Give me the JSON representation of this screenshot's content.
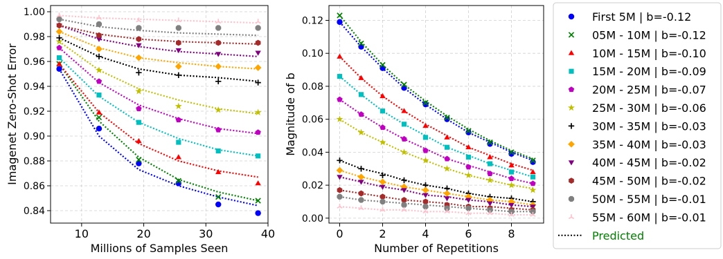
{
  "series_styles": [
    {
      "color": "#0000ff",
      "marker": "circle"
    },
    {
      "color": "#008000",
      "marker": "x"
    },
    {
      "color": "#ff0000",
      "marker": "triangle-up"
    },
    {
      "color": "#00bfbf",
      "marker": "square"
    },
    {
      "color": "#c000c0",
      "marker": "pentagon"
    },
    {
      "color": "#bfbf00",
      "marker": "star"
    },
    {
      "color": "#000000",
      "marker": "plus"
    },
    {
      "color": "#ffa500",
      "marker": "diamond"
    },
    {
      "color": "#800080",
      "marker": "triangle-down"
    },
    {
      "color": "#a52a2a",
      "marker": "hexagon"
    },
    {
      "color": "#808080",
      "marker": "octagon"
    },
    {
      "color": "#ffc0cb",
      "marker": "tri-down"
    }
  ],
  "legend": {
    "entries": [
      "First 5M      | b=-0.12",
      "05M - 10M | b=-0.12",
      "10M - 15M | b=-0.10",
      "15M - 20M | b=-0.09",
      "20M - 25M | b=-0.07",
      "25M - 30M | b=-0.06",
      "30M - 35M | b=-0.03",
      "35M - 40M | b=-0.03",
      "40M - 45M | b=-0.02",
      "45M - 50M | b=-0.02",
      "50M - 55M | b=-0.01",
      "55M - 60M | b=-0.01"
    ],
    "predicted_label": "Predicted",
    "predicted_color": "#008000",
    "placement": "right, outside plots"
  },
  "chart_data": [
    {
      "type": "scatter",
      "xlabel": "Millions of Samples Seen",
      "ylabel": "Imagenet Zero-Shot Error",
      "xlim": [
        5,
        40
      ],
      "ylim": [
        0.83,
        1.005
      ],
      "xticks": [
        10,
        20,
        30,
        40
      ],
      "xtick_labels": [
        "10",
        "20",
        "30",
        "40"
      ],
      "yticks": [
        0.84,
        0.86,
        0.88,
        0.9,
        0.92,
        0.94,
        0.96,
        0.98,
        1.0
      ],
      "ytick_labels": [
        "0.84",
        "0.86",
        "0.88",
        "0.90",
        "0.92",
        "0.94",
        "0.96",
        "0.98",
        "1.00"
      ],
      "grid": true,
      "x": [
        6.4,
        12.8,
        19.2,
        25.6,
        32.0,
        38.4
      ],
      "series": [
        {
          "values": [
            0.954,
            0.906,
            0.878,
            0.862,
            0.845,
            0.838
          ],
          "predicted": [
            0.954,
            0.9,
            0.873,
            0.86,
            0.851,
            0.844
          ]
        },
        {
          "values": [
            0.958,
            0.915,
            0.881,
            0.864,
            0.851,
            0.848
          ],
          "predicted": [
            0.958,
            0.912,
            0.883,
            0.865,
            0.855,
            0.848
          ]
        },
        {
          "values": [
            0.958,
            0.919,
            0.896,
            0.883,
            0.871,
            0.862
          ],
          "predicted": [
            0.958,
            0.919,
            0.894,
            0.88,
            0.872,
            0.867
          ]
        },
        {
          "values": [
            0.963,
            0.933,
            0.911,
            0.895,
            0.888,
            0.884
          ],
          "predicted": [
            0.963,
            0.932,
            0.911,
            0.898,
            0.889,
            0.884
          ]
        },
        {
          "values": [
            0.971,
            0.944,
            0.922,
            0.913,
            0.905,
            0.903
          ],
          "predicted": [
            0.971,
            0.943,
            0.925,
            0.914,
            0.906,
            0.902
          ]
        },
        {
          "values": [
            0.976,
            0.953,
            0.936,
            0.924,
            0.921,
            0.919
          ],
          "predicted": [
            0.976,
            0.953,
            0.938,
            0.929,
            0.922,
            0.918
          ]
        },
        {
          "values": [
            0.979,
            0.964,
            0.951,
            0.949,
            0.944,
            0.943
          ],
          "predicted": [
            0.979,
            0.964,
            0.954,
            0.949,
            0.947,
            0.944
          ]
        },
        {
          "values": [
            0.984,
            0.97,
            0.963,
            0.956,
            0.956,
            0.955
          ],
          "predicted": [
            0.984,
            0.971,
            0.963,
            0.959,
            0.956,
            0.954
          ]
        },
        {
          "values": [
            0.989,
            0.978,
            0.973,
            0.969,
            0.966,
            0.967
          ],
          "predicted": [
            0.989,
            0.978,
            0.972,
            0.968,
            0.966,
            0.964
          ]
        },
        {
          "values": [
            0.989,
            0.981,
            0.978,
            0.975,
            0.975,
            0.975
          ],
          "predicted": [
            0.989,
            0.982,
            0.978,
            0.976,
            0.975,
            0.974
          ]
        },
        {
          "values": [
            0.994,
            0.99,
            0.987,
            0.987,
            0.987,
            0.987
          ],
          "predicted": [
            0.994,
            0.988,
            0.985,
            0.983,
            0.982,
            0.981
          ]
        },
        {
          "values": [
            0.997,
            0.995,
            0.993,
            0.993,
            0.992,
            0.992
          ],
          "predicted": [
            0.997,
            0.995,
            0.994,
            0.993,
            0.992,
            0.991
          ]
        }
      ]
    },
    {
      "type": "scatter",
      "xlabel": "Number of Repetitions",
      "ylabel": "Magnitude of b",
      "xlim": [
        -0.5,
        9.5
      ],
      "ylim": [
        -0.003,
        0.129
      ],
      "xticks": [
        0,
        2,
        4,
        6,
        8
      ],
      "xtick_labels": [
        "0",
        "2",
        "4",
        "6",
        "8"
      ],
      "yticks": [
        0.0,
        0.02,
        0.04,
        0.06,
        0.08,
        0.1,
        0.12
      ],
      "ytick_labels": [
        "0.00",
        "0.02",
        "0.04",
        "0.06",
        "0.08",
        "0.10",
        "0.12"
      ],
      "grid": true,
      "x": [
        0,
        1,
        2,
        3,
        4,
        5,
        6,
        7,
        8,
        9
      ],
      "series": [
        {
          "values": [
            0.119,
            0.104,
            0.091,
            0.079,
            0.069,
            0.06,
            0.052,
            0.045,
            0.039,
            0.034
          ],
          "predicted": [
            0.119,
            0.104,
            0.091,
            0.079,
            0.069,
            0.06,
            0.052,
            0.046,
            0.04,
            0.035
          ]
        },
        {
          "values": [
            0.123,
            0.106,
            0.093,
            0.081,
            0.07,
            0.061,
            0.053,
            0.046,
            0.04,
            0.035
          ],
          "predicted": [
            0.123,
            0.107,
            0.093,
            0.081,
            0.071,
            0.062,
            0.054,
            0.047,
            0.041,
            0.036
          ]
        },
        {
          "values": [
            0.098,
            0.085,
            0.074,
            0.065,
            0.056,
            0.049,
            0.043,
            0.037,
            0.032,
            0.028
          ],
          "predicted": [
            0.098,
            0.085,
            0.074,
            0.065,
            0.057,
            0.05,
            0.043,
            0.038,
            0.033,
            0.029
          ]
        },
        {
          "values": [
            0.086,
            0.075,
            0.065,
            0.057,
            0.049,
            0.043,
            0.037,
            0.033,
            0.028,
            0.025
          ],
          "predicted": [
            0.086,
            0.075,
            0.065,
            0.057,
            0.05,
            0.043,
            0.038,
            0.033,
            0.029,
            0.025
          ]
        },
        {
          "values": [
            0.072,
            0.063,
            0.055,
            0.048,
            0.041,
            0.036,
            0.031,
            0.027,
            0.024,
            0.021
          ],
          "predicted": [
            0.072,
            0.063,
            0.055,
            0.048,
            0.042,
            0.036,
            0.032,
            0.028,
            0.024,
            0.021
          ]
        },
        {
          "values": [
            0.06,
            0.052,
            0.046,
            0.04,
            0.035,
            0.03,
            0.026,
            0.023,
            0.02,
            0.017
          ],
          "predicted": [
            0.06,
            0.052,
            0.046,
            0.04,
            0.035,
            0.03,
            0.026,
            0.023,
            0.02,
            0.018
          ]
        },
        {
          "values": [
            0.035,
            0.03,
            0.026,
            0.023,
            0.02,
            0.018,
            0.015,
            0.013,
            0.012,
            0.01
          ],
          "predicted": [
            0.035,
            0.03,
            0.027,
            0.023,
            0.02,
            0.018,
            0.015,
            0.013,
            0.012,
            0.01
          ]
        },
        {
          "values": [
            0.029,
            0.025,
            0.022,
            0.019,
            0.017,
            0.015,
            0.013,
            0.011,
            0.01,
            0.008
          ],
          "predicted": [
            0.029,
            0.025,
            0.022,
            0.019,
            0.017,
            0.015,
            0.013,
            0.011,
            0.01,
            0.008
          ]
        },
        {
          "values": [
            0.025,
            0.022,
            0.019,
            0.017,
            0.014,
            0.012,
            0.011,
            0.009,
            0.008,
            0.007
          ],
          "predicted": [
            0.025,
            0.022,
            0.019,
            0.017,
            0.014,
            0.013,
            0.011,
            0.01,
            0.008,
            0.007
          ]
        },
        {
          "values": [
            0.017,
            0.015,
            0.013,
            0.011,
            0.01,
            0.008,
            0.007,
            0.006,
            0.005,
            0.005
          ],
          "predicted": [
            0.017,
            0.015,
            0.013,
            0.011,
            0.01,
            0.009,
            0.007,
            0.007,
            0.006,
            0.005
          ]
        },
        {
          "values": [
            0.013,
            0.011,
            0.01,
            0.008,
            0.007,
            0.006,
            0.006,
            0.005,
            0.004,
            0.004
          ],
          "predicted": [
            0.013,
            0.011,
            0.01,
            0.009,
            0.008,
            0.007,
            0.006,
            0.005,
            0.004,
            0.004
          ]
        },
        {
          "values": [
            0.007,
            0.006,
            0.005,
            0.005,
            0.004,
            0.004,
            0.003,
            0.003,
            0.002,
            0.002
          ],
          "predicted": [
            0.007,
            0.006,
            0.005,
            0.005,
            0.004,
            0.004,
            0.003,
            0.003,
            0.002,
            0.002
          ]
        }
      ]
    }
  ]
}
